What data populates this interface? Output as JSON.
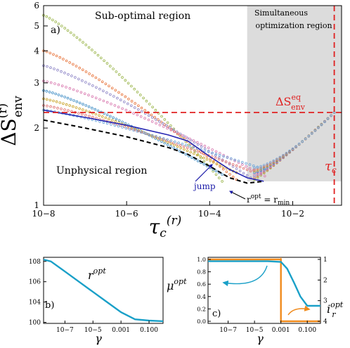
{
  "chart_data": [
    {
      "panel": "a)",
      "type": "scatter",
      "xscale": "log",
      "yscale": "log",
      "xlim": [
        1e-08,
        0.15
      ],
      "ylim": [
        1,
        6
      ],
      "xlabel": "τc(r)",
      "ylabel": "ΔSenv(r)",
      "x_ticks": [
        "10−8",
        "10−6",
        "10−4",
        "10−2"
      ],
      "y_ticks": [
        "1",
        "2",
        "3",
        "4",
        "5",
        "6"
      ],
      "annotations": {
        "suboptimal": "Sub-optimal region",
        "simultaneous": "Simultaneous optimization region",
        "unphysical": "Unphysical region",
        "jump": "jump",
        "ropt": "ropt = rmin",
        "dseq": "ΔSeqenv",
        "tauc": "τc"
      },
      "tau_c_line": 0.1,
      "delta_s_eq": 2.3,
      "series_colors": [
        "#9ab54a",
        "#e8743b",
        "#8e86c7",
        "#d97ab0",
        "#3b8bc4",
        "#c9a227",
        "#e07070",
        "#6fa8dc"
      ],
      "series_start_y": [
        5.5,
        4.0,
        3.5,
        3.05,
        2.8,
        2.6,
        2.45,
        2.35
      ],
      "optimal_curve": {
        "x": [
          1e-08,
          1e-07,
          1e-06,
          1e-05,
          3e-05,
          0.0001,
          0.0003,
          0.0008,
          0.002
        ],
        "y": [
          2.15,
          2.0,
          1.85,
          1.68,
          1.58,
          1.42,
          1.28,
          1.22,
          1.24
        ]
      },
      "blue_curve": {
        "x": [
          1e-08,
          1e-07,
          1e-06,
          1e-05,
          3e-05,
          0.0001,
          0.0003,
          0.0008,
          0.002
        ],
        "y": [
          2.35,
          2.2,
          2.05,
          1.88,
          1.78,
          1.55,
          1.38,
          1.28,
          1.24
        ]
      }
    },
    {
      "panel": "b)",
      "type": "line",
      "xscale": "log",
      "yscale": "log",
      "xlabel": "γ",
      "label": "ropt",
      "x_ticks": [
        "10−7",
        "10−5",
        "0.001",
        "0.100"
      ],
      "y_ticks": [
        "108",
        "106",
        "104",
        "100"
      ],
      "x": [
        3e-09,
        1e-08,
        1e-07,
        1e-06,
        1e-05,
        0.0001,
        0.001,
        0.01,
        0.1,
        1
      ],
      "y": [
        150000000.0,
        100000000.0,
        10000000.0,
        1000000.0,
        100000.0,
        10000.0,
        1000,
        200,
        150,
        130
      ]
    },
    {
      "panel": "c)",
      "type": "line",
      "xscale": "log",
      "xlabel": "γ",
      "left_label": "μopt",
      "right_label": "iropt",
      "left_ticks": [
        "1.0",
        "0.8",
        "0.6",
        "0.4",
        "0.2",
        "0.0"
      ],
      "right_ticks": [
        "1",
        "2",
        "3",
        "4"
      ],
      "x_ticks": [
        "10−7",
        "10−5",
        "0.001",
        "0.100"
      ],
      "mu": {
        "x": [
          3e-09,
          1e-06,
          0.0001,
          0.001,
          0.003,
          0.01,
          0.03,
          0.1,
          1
        ],
        "y": [
          0.97,
          0.97,
          0.97,
          0.96,
          0.85,
          0.62,
          0.4,
          0.25,
          0.25
        ]
      },
      "ir": {
        "x": [
          3e-09,
          0.001,
          0.001,
          1
        ],
        "y": [
          1,
          1,
          4,
          4
        ]
      },
      "colors": {
        "mu": "#1aa0c8",
        "ir": "#f08a1c"
      }
    }
  ]
}
